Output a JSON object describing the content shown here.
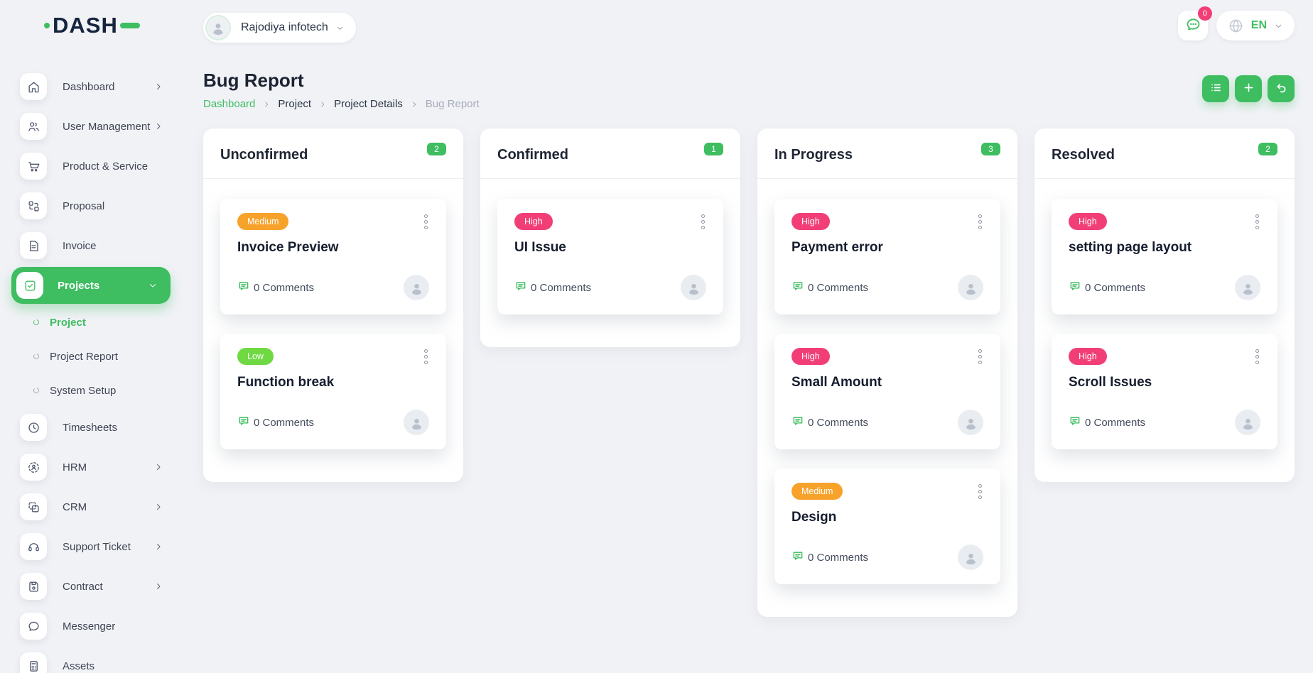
{
  "brand": {
    "name": "DASH"
  },
  "colors": {
    "primary": "#3ebd61",
    "priority": {
      "high": "#f23e77",
      "medium": "#f7a32b",
      "low": "#6fd943"
    },
    "badge": "#f23e77"
  },
  "topbar": {
    "company": {
      "name": "Rajodiya infotech",
      "avatar_icon": "person-icon",
      "chevron_icon": "chevron-down-icon"
    },
    "messages": {
      "badge": "0",
      "icon": "chat-bubble-icon"
    },
    "language": {
      "code": "EN",
      "icon": "globe-icon",
      "chevron_icon": "chevron-down-icon"
    }
  },
  "sidebar": {
    "items": [
      {
        "label": "Dashboard",
        "icon": "home-icon",
        "chevron": "right"
      },
      {
        "label": "User Management",
        "icon": "users-icon",
        "chevron": "right"
      },
      {
        "label": "Product & Service",
        "icon": "cart-icon",
        "chevron": null
      },
      {
        "label": "Proposal",
        "icon": "proposal-icon",
        "chevron": null
      },
      {
        "label": "Invoice",
        "icon": "invoice-icon",
        "chevron": null
      },
      {
        "label": "Projects",
        "icon": "check-square-icon",
        "chevron": "down",
        "active": true
      },
      {
        "label": "Project",
        "type": "sub",
        "icon": "circle-icon",
        "active": true
      },
      {
        "label": "Project Report",
        "type": "sub",
        "icon": "circle-icon"
      },
      {
        "label": "System Setup",
        "type": "sub",
        "icon": "circle-icon"
      },
      {
        "label": "Timesheets",
        "icon": "clock-icon",
        "chevron": null
      },
      {
        "label": "HRM",
        "icon": "hrm-icon",
        "chevron": "right"
      },
      {
        "label": "CRM",
        "icon": "crm-icon",
        "chevron": "right"
      },
      {
        "label": "Support Ticket",
        "icon": "headset-icon",
        "chevron": "right"
      },
      {
        "label": "Contract",
        "icon": "contract-icon",
        "chevron": "right"
      },
      {
        "label": "Messenger",
        "icon": "message-icon",
        "chevron": null
      },
      {
        "label": "Assets",
        "icon": "calculator-icon",
        "chevron": null
      }
    ]
  },
  "page": {
    "title": "Bug Report",
    "breadcrumb": [
      {
        "label": "Dashboard",
        "style": "link"
      },
      {
        "label": "Project",
        "style": "normal"
      },
      {
        "label": "Project Details",
        "style": "normal"
      },
      {
        "label": "Bug Report",
        "style": "muted"
      }
    ],
    "actions": [
      {
        "name": "list-view",
        "icon": "list-icon"
      },
      {
        "name": "add",
        "icon": "plus-icon"
      },
      {
        "name": "back",
        "icon": "undo-icon"
      }
    ]
  },
  "board": {
    "columns": [
      {
        "title": "Unconfirmed",
        "count": "2",
        "cards": [
          {
            "priority": "Medium",
            "title": "Invoice Preview",
            "comments": "0 Comments"
          },
          {
            "priority": "Low",
            "title": "Function break",
            "comments": "0 Comments"
          }
        ]
      },
      {
        "title": "Confirmed",
        "count": "1",
        "cards": [
          {
            "priority": "High",
            "title": "UI Issue",
            "comments": "0 Comments"
          }
        ]
      },
      {
        "title": "In Progress",
        "count": "3",
        "cards": [
          {
            "priority": "High",
            "title": "Payment error",
            "comments": "0 Comments"
          },
          {
            "priority": "High",
            "title": "Small Amount",
            "comments": "0 Comments"
          },
          {
            "priority": "Medium",
            "title": "Design",
            "comments": "0 Comments"
          }
        ]
      },
      {
        "title": "Resolved",
        "count": "2",
        "cards": [
          {
            "priority": "High",
            "title": "setting page layout",
            "comments": "0 Comments"
          },
          {
            "priority": "High",
            "title": "Scroll Issues",
            "comments": "0 Comments"
          }
        ]
      }
    ]
  }
}
